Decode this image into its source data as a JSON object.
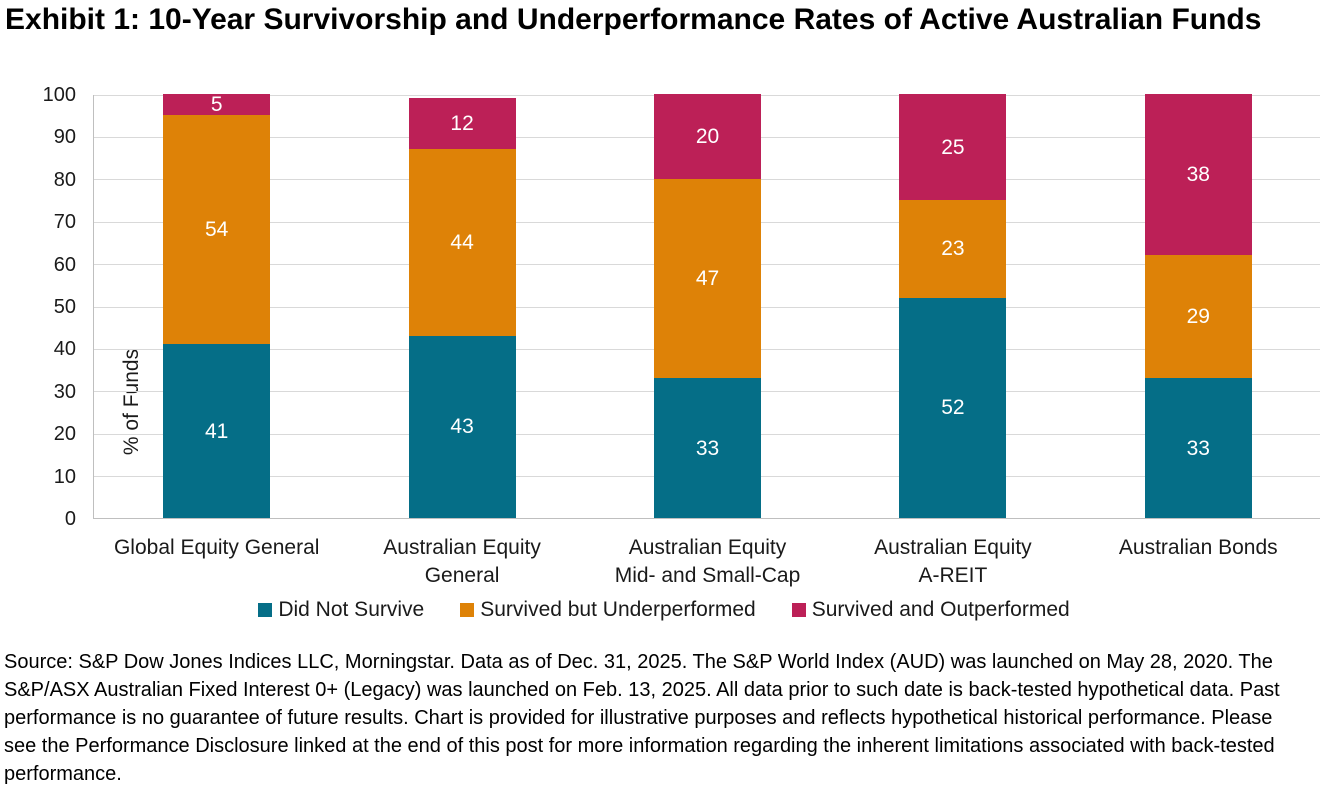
{
  "title": "Exhibit 1: 10-Year Survivorship and Underperformance Rates of Active Australian Funds",
  "source_note": "Source: S&P Dow Jones Indices LLC, Morningstar. Data as of Dec. 31, 2025. The S&P World Index (AUD) was launched on May 28, 2020. The S&P/ASX Australian Fixed Interest 0+ (Legacy) was launched on Feb. 13, 2025. All data prior to such date is back-tested hypothetical data. Past performance is no guarantee of future results. Chart is provided for illustrative purposes and reflects hypothetical historical performance. Please see the Performance Disclosure linked at the end of this post for more information regarding the inherent limitations associated with back-tested performance.",
  "chart_data": {
    "type": "bar",
    "stacked": true,
    "title": "Exhibit 1: 10-Year Survivorship and Underperformance Rates of Active Australian Funds",
    "categories": [
      "Global Equity General",
      "Australian Equity\nGeneral",
      "Australian Equity\nMid- and Small-Cap",
      "Australian Equity\nA-REIT",
      "Australian Bonds"
    ],
    "series": [
      {
        "name": "Did Not Survive",
        "color": "#056e87",
        "values": [
          41,
          43,
          33,
          52,
          33
        ]
      },
      {
        "name": "Survived but Underperformed",
        "color": "#de8207",
        "values": [
          54,
          44,
          47,
          23,
          29
        ]
      },
      {
        "name": "Survived and Outperformed",
        "color": "#bc2057",
        "values": [
          5,
          12,
          20,
          25,
          38
        ]
      }
    ],
    "xlabel": "",
    "ylabel": "% of Funds",
    "ylim": [
      0,
      100
    ],
    "yticks": [
      0,
      10,
      20,
      30,
      40,
      50,
      60,
      70,
      80,
      90,
      100
    ],
    "grid": true,
    "gridline_color": "#d9d9d9",
    "axis_line_color": "#bfbfbf",
    "bar_label_color": "#ffffff",
    "legend_position": "bottom"
  }
}
